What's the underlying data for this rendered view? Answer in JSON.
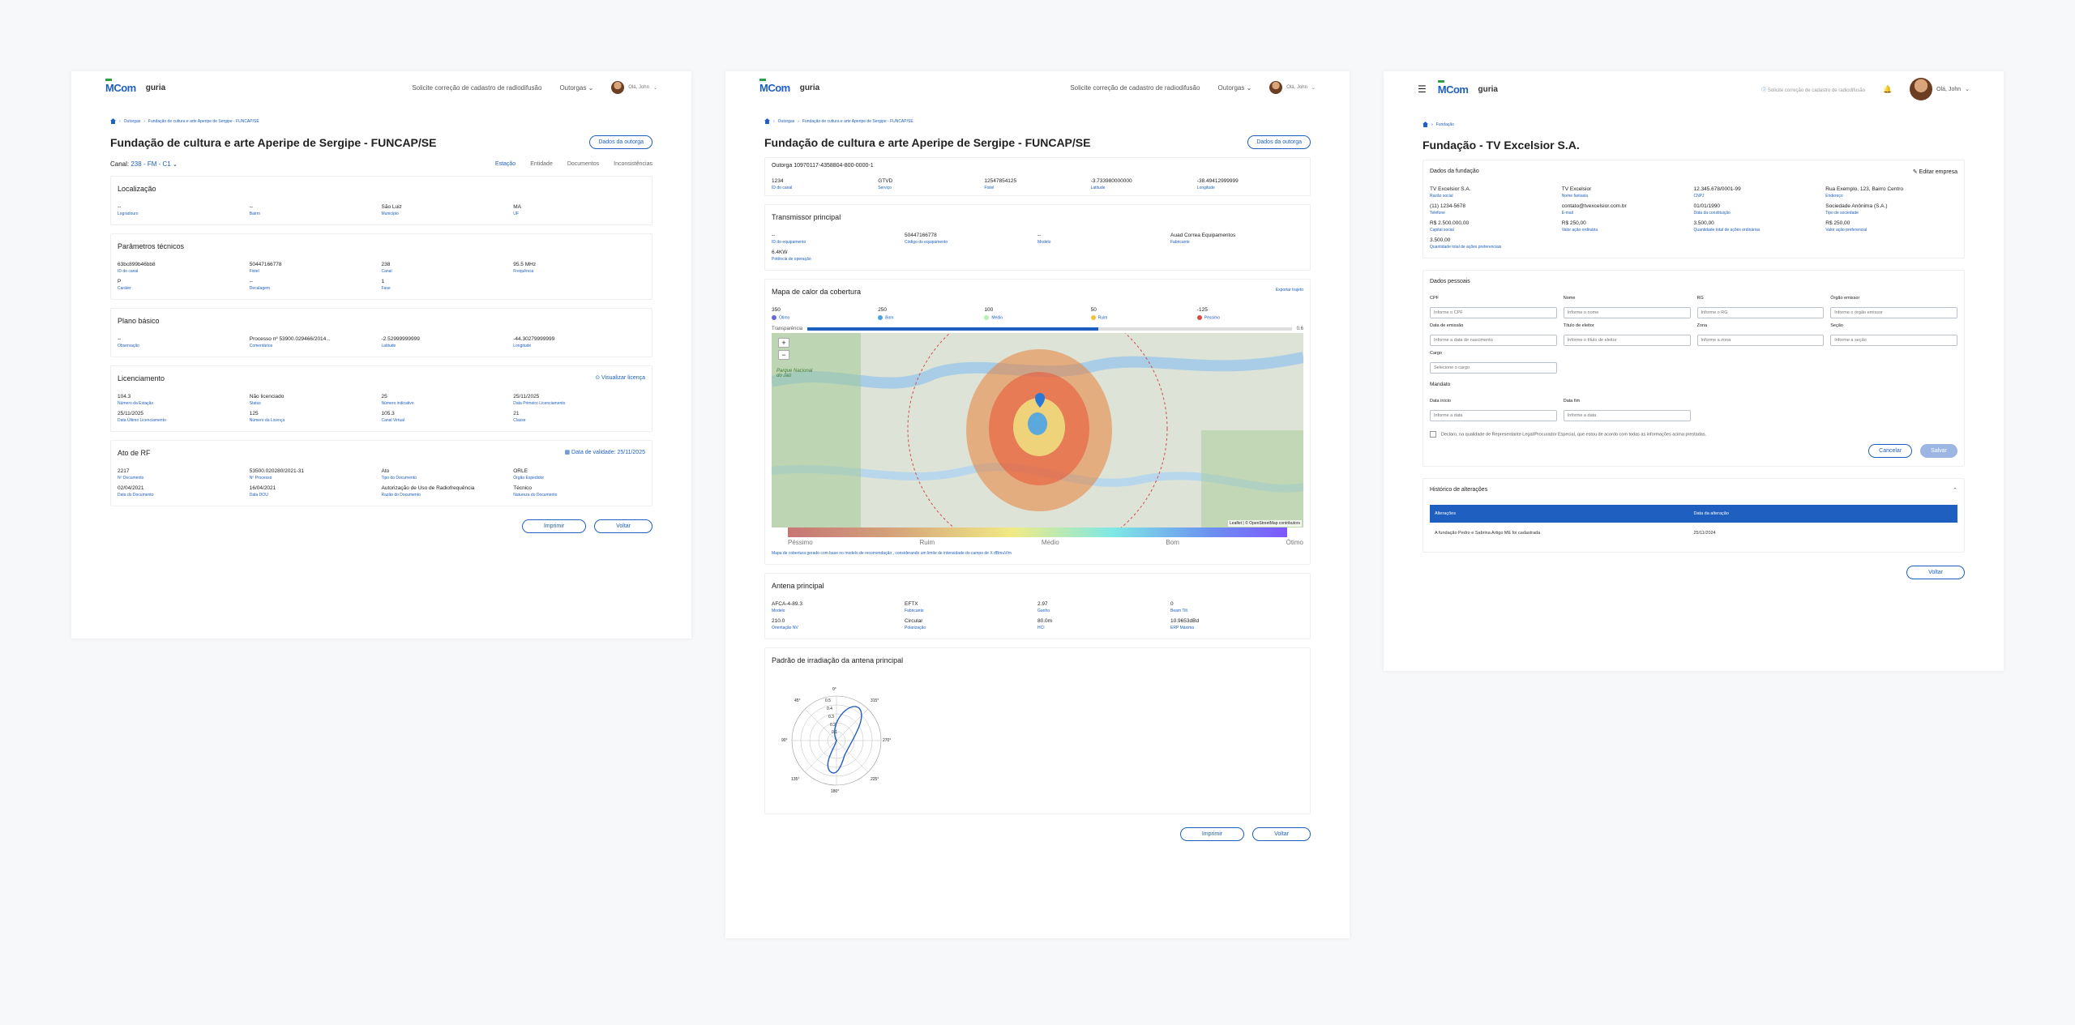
{
  "header": {
    "logo_mcom": "MCom",
    "logo_guria": "guria",
    "request_link": "Solicite correção de cadastro de radiodifusão",
    "outorgas_menu": "Outorgas",
    "user_name": "Olá, John",
    "icons": [
      "home-icon",
      "bell-icon",
      "menu-icon",
      "chevron-down-icon"
    ]
  },
  "p1": {
    "breadcrumb": [
      "Outorgas",
      "Fundação de cultura e arte Aperipe de Sergipe - FUNCAP/SE"
    ],
    "title": "Fundação de cultura e arte Aperipe de Sergipe - FUNCAP/SE",
    "dados_btn": "Dados da outorga",
    "canal_label": "Canal:",
    "canal_value": "238 - FM - C1",
    "tabs": [
      "Estação",
      "Entidade",
      "Documentos",
      "Inconsistências"
    ],
    "localizacao": {
      "title": "Localização",
      "fields": [
        [
          "--",
          "Logradouro"
        ],
        [
          "--",
          "Bairro"
        ],
        [
          "São Luiz",
          "Município"
        ],
        [
          "MA",
          "UF"
        ]
      ]
    },
    "parametros": {
      "title": "Parâmetros técnicos",
      "fields": [
        [
          "63bc899b46bb8",
          "ID do canal"
        ],
        [
          "50447166778",
          "Fistel"
        ],
        [
          "238",
          "Canal"
        ],
        [
          "95.5 MHz",
          "Frequência"
        ],
        [
          "P",
          "Caráter"
        ],
        [
          "--",
          "Decalagem"
        ],
        [
          "1",
          "Fase"
        ]
      ]
    },
    "plano": {
      "title": "Plano básico",
      "fields": [
        [
          "--",
          "Observação"
        ],
        [
          "Processo nº 53900.029466/2014...",
          "Comentários"
        ],
        [
          "-2.52999999999",
          "Latitude"
        ],
        [
          "-44.30279999999",
          "Longitude"
        ]
      ]
    },
    "licenciamento": {
      "title": "Licenciamento",
      "link": "Visualizar licença",
      "fields": [
        [
          "104.3",
          "Número da Estação"
        ],
        [
          "Não licenciado",
          "Status"
        ],
        [
          "25",
          "Número indicativo"
        ],
        [
          "25/11/2025",
          "Data Primeiro Licenciamento"
        ],
        [
          "25/11/2025",
          "Data Último Licenciamento"
        ],
        [
          "125",
          "Número da Licença"
        ],
        [
          "105.3",
          "Canal Virtual"
        ],
        [
          "21",
          "Classe"
        ]
      ]
    },
    "ato": {
      "title": "Ato de RF",
      "link": "Data de validade: 25/11/2025",
      "fields": [
        [
          "2217",
          "Nº Documento"
        ],
        [
          "53500.020280/2021-31",
          "Nº Processo"
        ],
        [
          "Ato",
          "Tipo do Documento"
        ],
        [
          "ORLE",
          "Órgão Expedidor"
        ],
        [
          "02/04/2021",
          "Data do Documento"
        ],
        [
          "16/04/2021",
          "Data DOU"
        ],
        [
          "Autorização de Uso de Radiofrequência",
          "Razão do Documento"
        ],
        [
          "Técnico",
          "Natureza do Documento"
        ]
      ]
    },
    "print_btn": "Imprimir",
    "back_btn": "Voltar"
  },
  "p2": {
    "breadcrumb": [
      "Outorgas",
      "Fundação de cultura e arte Aperipe de Sergipe - FUNCAP/SE"
    ],
    "title": "Fundação de cultura e arte Aperipe de Sergipe - FUNCAP/SE",
    "dados_btn": "Dados da outorga",
    "outorga_id": "Outorga 10970117-4358804-800-0000-1",
    "outorga_fields": [
      [
        "1234",
        "ID do canal"
      ],
      [
        "GTVD",
        "Serviço"
      ],
      [
        "12547854125",
        "Fistel"
      ],
      [
        "-3.733980000000",
        "Latitude"
      ],
      [
        "-38.49412999999",
        "Longitude"
      ]
    ],
    "transmissor": {
      "title": "Transmissor principal",
      "fields": [
        [
          "--",
          "ID do equipamento"
        ],
        [
          "50447166778",
          "Código do equipamento"
        ],
        [
          "--",
          "Modelo"
        ],
        [
          "Auad Correa Equipamentos",
          "Fabricante"
        ],
        [
          "6.4KW",
          "Potência de operação"
        ]
      ]
    },
    "mapa": {
      "title": "Mapa de calor da cobertura",
      "export": "Exportar trajeto",
      "legend": [
        {
          "value": "350",
          "label": "Ótimo",
          "color": "#6b6bd6"
        },
        {
          "value": "250",
          "label": "Bom",
          "color": "#4aa3e8"
        },
        {
          "value": "100",
          "label": "Médio",
          "color": "#b8f0b8"
        },
        {
          "value": "50",
          "label": "Ruim",
          "color": "#f0c040"
        },
        {
          "value": "-125",
          "label": "Péssimo",
          "color": "#d64a4a"
        }
      ],
      "transparency_label": "Transparência",
      "transparency_value": "0.6",
      "zoom_in": "+",
      "zoom_out": "−",
      "map_label": "Parque Nacional do Jaú",
      "attribution": "Leaflet | © OpenStreetMap contributors",
      "scale": [
        "Péssimo",
        "Ruim",
        "Médio",
        "Bom",
        "Ótimo"
      ],
      "note": "Mapa de cobertura gerado com base no modelo de recomendação , considerando um limite de intensidade do campo de X dBmuV/m"
    },
    "antena": {
      "title": "Antena principal",
      "fields": [
        [
          "AFCA-4-89.3",
          "Modelo"
        ],
        [
          "EFTX",
          "Fabricante"
        ],
        [
          "2.97",
          "Ganho"
        ],
        [
          "0",
          "Beam Tilt"
        ],
        [
          "210.0",
          "Orientação NV"
        ],
        [
          "Circular",
          "Polarização"
        ],
        [
          "80.0m",
          "HCI"
        ],
        [
          "10.9653dBd",
          "ERP Máxima"
        ]
      ]
    },
    "padrao": {
      "title": "Padrão de irradiação da antena principal",
      "angles": [
        "0°",
        "45°",
        "90°",
        "135°",
        "180°",
        "225°",
        "270°",
        "315°"
      ],
      "rings": [
        "0.5",
        "0.4",
        "0.3",
        "0.2",
        "0.1"
      ]
    },
    "print_btn": "Imprimir",
    "back_btn": "Voltar"
  },
  "p3": {
    "breadcrumb": [
      "Fundação"
    ],
    "title": "Fundação - TV Excelsior S.A.",
    "dados_fundacao": {
      "title": "Dados da fundação",
      "edit": "Editar empresa",
      "fields": [
        [
          "TV Excelsior S.A.",
          "Razão social"
        ],
        [
          "TV Excelsior",
          "Nome fantasia"
        ],
        [
          "12.345.678/0001-99",
          "CNPJ"
        ],
        [
          "Rua Exemplo, 123, Bairro Centro",
          "Endereço"
        ],
        [
          "(11) 1234-5678",
          "Telefone"
        ],
        [
          "contato@tvexcelsior.com.br",
          "E-mail"
        ],
        [
          "01/01/1990",
          "Data da constituição"
        ],
        [
          "Sociedade Anônima (S.A.)",
          "Tipo de sociedade"
        ],
        [
          "R$ 2.500.000,00",
          "Capital social"
        ],
        [
          "R$ 250,00",
          "Valor ação ordinária"
        ],
        [
          "3.500,00",
          "Quantidade total de ações ordinárias"
        ],
        [
          "R$ 250,00",
          "Valor ação preferencial"
        ],
        [
          "3.500,00",
          "Quantidade total de ações preferenciais"
        ]
      ]
    },
    "dados_pessoais": {
      "title": "Dados pessoais",
      "inputs": [
        {
          "label": "CPF",
          "placeholder": "Informe o CPF"
        },
        {
          "label": "Nome",
          "placeholder": "Informe o nome"
        },
        {
          "label": "RG",
          "placeholder": "Informe o RG"
        },
        {
          "label": "Órgão emissor",
          "placeholder": "Informe o órgão emissor"
        },
        {
          "label": "Data de emissão",
          "placeholder": "Informe a data de nascimento"
        },
        {
          "label": "Título de eleitor",
          "placeholder": "Informe o título de eleitor"
        },
        {
          "label": "Zona",
          "placeholder": "Informe a zona"
        },
        {
          "label": "Seção",
          "placeholder": "Informe a seção"
        }
      ],
      "cargo_label": "Cargo",
      "cargo_placeholder": "Selecione o cargo",
      "mandato": "Mandato",
      "inicio_label": "Data início",
      "inicio_placeholder": "Informe a data",
      "fim_label": "Data fim",
      "fim_placeholder": "Informe a data",
      "declaro": "Declaro, na qualidade de Representante Legal/Procurador Especial, que estou de acordo com todas as informações acima prestadas.",
      "cancel_btn": "Cancelar",
      "save_btn": "Salvar"
    },
    "historico": {
      "title": "Histórico de alterações",
      "col1": "Alterações",
      "col2": "Data da alteração",
      "row_text": "A fundação Pedro e Sabrina Artigo ME foi cadastrada",
      "row_date": "25/11/2024"
    },
    "back_btn": "Voltar"
  }
}
